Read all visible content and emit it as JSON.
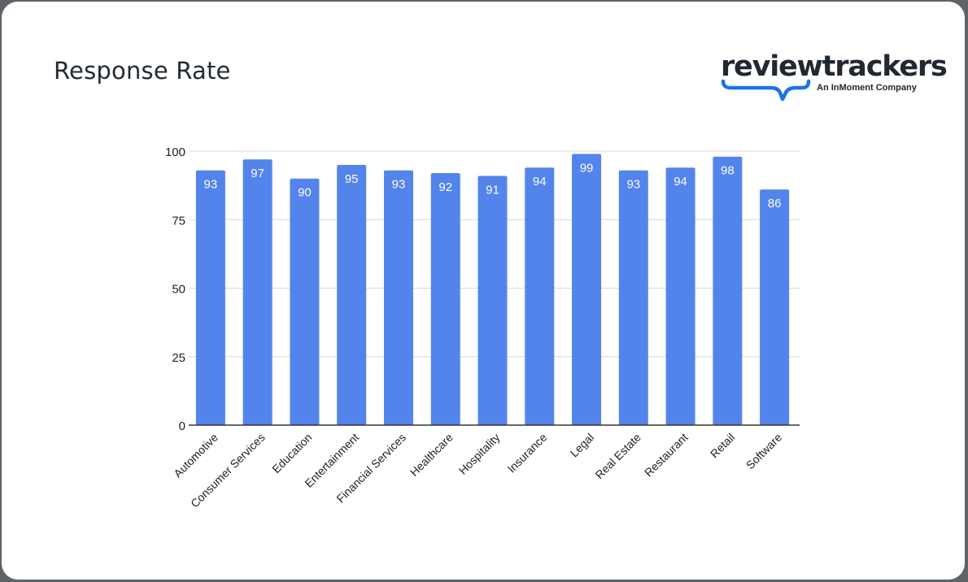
{
  "header": {
    "title": "Response Rate",
    "logo": {
      "wordmark": "reviewtrackers",
      "tagline": "An InMoment Company",
      "accent_color": "#1a73e8"
    }
  },
  "colors": {
    "bar": "#5384ec",
    "bar_label": "#ffffff",
    "gridline": "#d9d9d9",
    "axis": "#333333",
    "text": "#222222",
    "frame": "#5f6368"
  },
  "chart_data": {
    "type": "bar",
    "title": "Response Rate",
    "xlabel": "",
    "ylabel": "",
    "categories": [
      "Automotive",
      "Consumer Services",
      "Education",
      "Entertainment",
      "Financial Services",
      "Healthcare",
      "Hospitality",
      "Insurance",
      "Legal",
      "Real Estate",
      "Restaurant",
      "Retail",
      "Software"
    ],
    "values": [
      93,
      97,
      90,
      95,
      93,
      92,
      91,
      94,
      99,
      93,
      94,
      98,
      86
    ],
    "ylim": [
      0,
      100
    ],
    "yticks": [
      0,
      25,
      50,
      75,
      100
    ],
    "grid": true,
    "legend": null,
    "data_labels": true,
    "x_label_rotation": -45
  }
}
